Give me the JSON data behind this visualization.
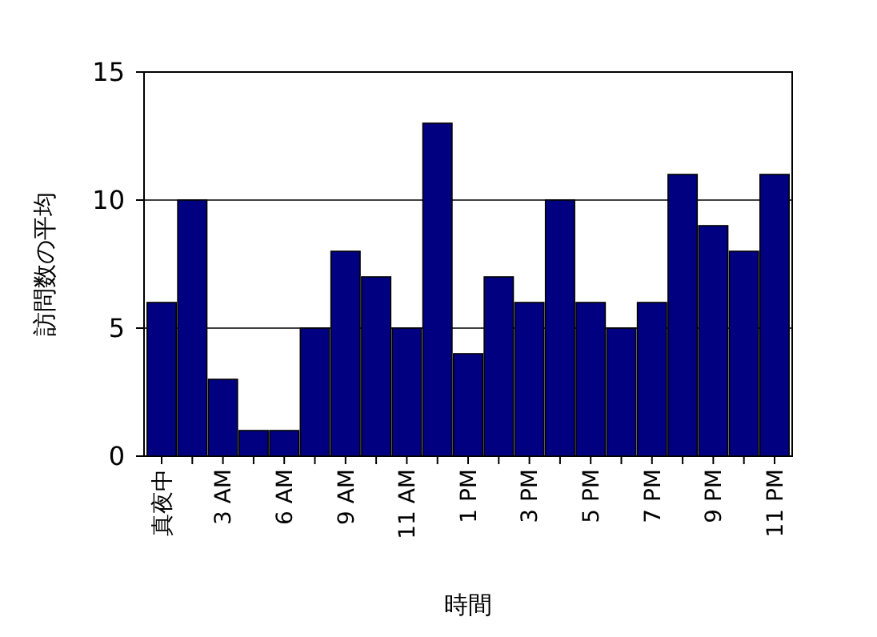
{
  "chart_data": {
    "type": "bar",
    "xlabel": "時間",
    "ylabel": "訪問数の平均",
    "categories": [
      "真夜中",
      null,
      "3 AM",
      null,
      "6 AM",
      null,
      "9 AM",
      null,
      "11 AM",
      null,
      "1 PM",
      null,
      "3 PM",
      null,
      "5 PM",
      null,
      "7 PM",
      null,
      "9 PM",
      null,
      "11 PM"
    ],
    "values": [
      6,
      10,
      3,
      1,
      1,
      5,
      8,
      7,
      5,
      13,
      4,
      7,
      6,
      10,
      6,
      5,
      6,
      11,
      9,
      8,
      11
    ],
    "color": "#000080",
    "ylim": [
      0,
      15
    ],
    "yticks": [
      0,
      5,
      10,
      15
    ],
    "grid": "y"
  }
}
